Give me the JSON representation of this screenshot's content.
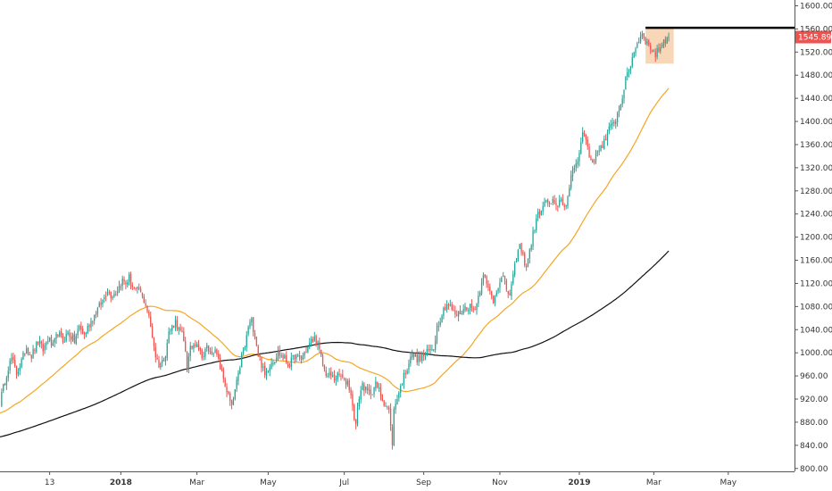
{
  "chart_data": {
    "type": "candlestick",
    "price_scale": {
      "position": "right",
      "ylim": [
        795,
        1610
      ],
      "ticks": [
        "800.00",
        "840.00",
        "880.00",
        "920.00",
        "960.00",
        "1000.00",
        "1040.00",
        "1080.00",
        "1120.00",
        "1160.00",
        "1200.00",
        "1240.00",
        "1280.00",
        "1320.00",
        "1360.00",
        "1400.00",
        "1440.00",
        "1480.00",
        "1520.00",
        "1560.00",
        "1600.00"
      ]
    },
    "time_scale": {
      "xlim": [
        0,
        480
      ],
      "ticks": [
        {
          "label": "13",
          "x": 30,
          "bold": false
        },
        {
          "label": "2018",
          "x": 73,
          "bold": true
        },
        {
          "label": "Mar",
          "x": 119,
          "bold": false
        },
        {
          "label": "May",
          "x": 162,
          "bold": false
        },
        {
          "label": "Jul",
          "x": 208,
          "bold": false
        },
        {
          "label": "Sep",
          "x": 256,
          "bold": false
        },
        {
          "label": "Nov",
          "x": 302,
          "bold": false
        },
        {
          "label": "2019",
          "x": 350,
          "bold": true
        },
        {
          "label": "Mar",
          "x": 395,
          "bold": false
        },
        {
          "label": "May",
          "x": 440,
          "bold": false
        }
      ]
    },
    "last_price": {
      "label": "1545.89",
      "value": 1545.89,
      "color": "#ef5350"
    },
    "resistance_line": {
      "y": 1562,
      "x_start": 390,
      "color": "#000000"
    },
    "highlight_box": {
      "x_start": 390,
      "x_end": 407,
      "y_low": 1500,
      "y_high": 1562,
      "color": "#f5c9a0"
    },
    "colors": {
      "up": "#26a69a",
      "down": "#ef5350",
      "ma_fast": "#f5a623",
      "ma_slow": "#111111"
    },
    "anchors": [
      [
        0,
        915
      ],
      [
        2,
        940
      ],
      [
        5,
        975
      ],
      [
        7,
        990
      ],
      [
        10,
        965
      ],
      [
        13,
        985
      ],
      [
        16,
        1010
      ],
      [
        19,
        995
      ],
      [
        23,
        1020
      ],
      [
        26,
        1005
      ],
      [
        29,
        1025
      ],
      [
        32,
        1010
      ],
      [
        35,
        1035
      ],
      [
        38,
        1020
      ],
      [
        41,
        1035
      ],
      [
        45,
        1020
      ],
      [
        48,
        1045
      ],
      [
        51,
        1030
      ],
      [
        54,
        1050
      ],
      [
        57,
        1065
      ],
      [
        60,
        1080
      ],
      [
        62,
        1090
      ],
      [
        65,
        1110
      ],
      [
        67,
        1100
      ],
      [
        70,
        1105
      ],
      [
        72,
        1115
      ],
      [
        74,
        1125
      ],
      [
        76,
        1120
      ],
      [
        78,
        1130
      ],
      [
        80,
        1115
      ],
      [
        82,
        1105
      ],
      [
        84,
        1110
      ],
      [
        86,
        1095
      ],
      [
        88,
        1085
      ],
      [
        90,
        1060
      ],
      [
        92,
        1030
      ],
      [
        94,
        995
      ],
      [
        96,
        980
      ],
      [
        98,
        985
      ],
      [
        100,
        1000
      ],
      [
        102,
        1035
      ],
      [
        104,
        1045
      ],
      [
        106,
        1055
      ],
      [
        108,
        1040
      ],
      [
        110,
        1030
      ],
      [
        112,
        1005
      ],
      [
        113,
        975
      ],
      [
        115,
        1005
      ],
      [
        117,
        1015
      ],
      [
        119,
        1020
      ],
      [
        121,
        1000
      ],
      [
        123,
        995
      ],
      [
        125,
        1010
      ],
      [
        127,
        1000
      ],
      [
        129,
        1005
      ],
      [
        131,
        995
      ],
      [
        133,
        975
      ],
      [
        135,
        955
      ],
      [
        137,
        935
      ],
      [
        139,
        915
      ],
      [
        140,
        905
      ],
      [
        142,
        935
      ],
      [
        144,
        960
      ],
      [
        146,
        995
      ],
      [
        148,
        1010
      ],
      [
        150,
        1045
      ],
      [
        152,
        1055
      ],
      [
        154,
        1030
      ],
      [
        156,
        1000
      ],
      [
        158,
        980
      ],
      [
        160,
        960
      ],
      [
        162,
        975
      ],
      [
        164,
        985
      ],
      [
        166,
        990
      ],
      [
        168,
        1000
      ],
      [
        170,
        995
      ],
      [
        172,
        990
      ],
      [
        174,
        980
      ],
      [
        176,
        985
      ],
      [
        178,
        995
      ],
      [
        180,
        990
      ],
      [
        182,
        990
      ],
      [
        184,
        1000
      ],
      [
        186,
        1010
      ],
      [
        188,
        1020
      ],
      [
        190,
        1025
      ],
      [
        192,
        1015
      ],
      [
        194,
        990
      ],
      [
        196,
        970
      ],
      [
        198,
        960
      ],
      [
        200,
        960
      ],
      [
        202,
        955
      ],
      [
        204,
        960
      ],
      [
        206,
        960
      ],
      [
        208,
        950
      ],
      [
        210,
        950
      ],
      [
        212,
        930
      ],
      [
        213,
        905
      ],
      [
        215,
        875
      ],
      [
        217,
        925
      ],
      [
        219,
        945
      ],
      [
        221,
        935
      ],
      [
        223,
        930
      ],
      [
        225,
        935
      ],
      [
        227,
        945
      ],
      [
        229,
        935
      ],
      [
        231,
        920
      ],
      [
        233,
        910
      ],
      [
        235,
        900
      ],
      [
        236,
        870
      ],
      [
        237,
        845
      ],
      [
        238,
        900
      ],
      [
        240,
        925
      ],
      [
        242,
        940
      ],
      [
        244,
        960
      ],
      [
        246,
        975
      ],
      [
        248,
        995
      ],
      [
        250,
        995
      ],
      [
        252,
        990
      ],
      [
        254,
        990
      ],
      [
        256,
        995
      ],
      [
        258,
        1000
      ],
      [
        260,
        1005
      ],
      [
        262,
        1010
      ],
      [
        264,
        1045
      ],
      [
        266,
        1060
      ],
      [
        268,
        1075
      ],
      [
        270,
        1085
      ],
      [
        272,
        1080
      ],
      [
        274,
        1070
      ],
      [
        276,
        1065
      ],
      [
        278,
        1070
      ],
      [
        280,
        1075
      ],
      [
        282,
        1080
      ],
      [
        284,
        1080
      ],
      [
        286,
        1075
      ],
      [
        288,
        1085
      ],
      [
        290,
        1110
      ],
      [
        292,
        1140
      ],
      [
        294,
        1115
      ],
      [
        296,
        1105
      ],
      [
        298,
        1090
      ],
      [
        300,
        1110
      ],
      [
        302,
        1125
      ],
      [
        304,
        1130
      ],
      [
        306,
        1110
      ],
      [
        308,
        1100
      ],
      [
        310,
        1130
      ],
      [
        312,
        1165
      ],
      [
        314,
        1185
      ],
      [
        316,
        1165
      ],
      [
        318,
        1150
      ],
      [
        320,
        1175
      ],
      [
        322,
        1205
      ],
      [
        324,
        1230
      ],
      [
        326,
        1245
      ],
      [
        328,
        1250
      ],
      [
        330,
        1265
      ],
      [
        332,
        1255
      ],
      [
        334,
        1260
      ],
      [
        336,
        1250
      ],
      [
        338,
        1265
      ],
      [
        340,
        1260
      ],
      [
        342,
        1255
      ],
      [
        344,
        1280
      ],
      [
        346,
        1320
      ],
      [
        348,
        1325
      ],
      [
        350,
        1350
      ],
      [
        352,
        1380
      ],
      [
        354,
        1370
      ],
      [
        356,
        1340
      ],
      [
        358,
        1330
      ],
      [
        360,
        1340
      ],
      [
        362,
        1355
      ],
      [
        364,
        1360
      ],
      [
        366,
        1370
      ],
      [
        368,
        1385
      ],
      [
        370,
        1395
      ],
      [
        372,
        1405
      ],
      [
        374,
        1420
      ],
      [
        376,
        1445
      ],
      [
        378,
        1470
      ],
      [
        380,
        1490
      ],
      [
        382,
        1510
      ],
      [
        384,
        1530
      ],
      [
        386,
        1540
      ],
      [
        388,
        1555
      ],
      [
        390,
        1540
      ],
      [
        392,
        1530
      ],
      [
        394,
        1525
      ],
      [
        396,
        1515
      ],
      [
        398,
        1525
      ],
      [
        400,
        1535
      ],
      [
        402,
        1542
      ],
      [
        404,
        1545.89
      ]
    ]
  }
}
